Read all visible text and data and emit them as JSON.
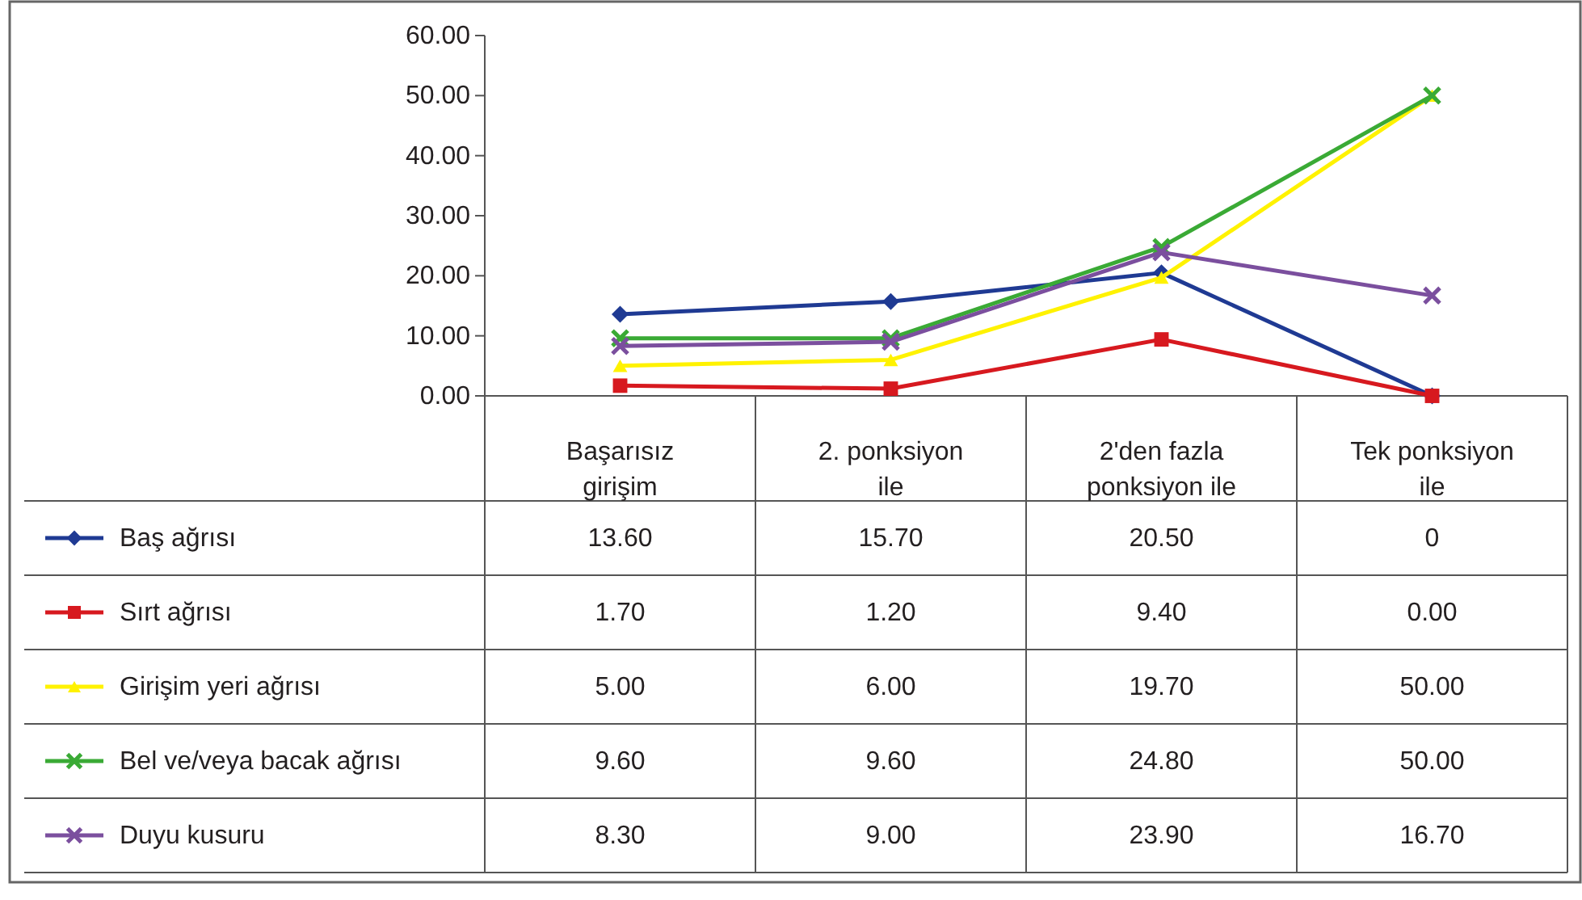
{
  "chart_data": {
    "type": "line",
    "categories": [
      "Başarısız girişim",
      "2. ponksiyon ile",
      "2'den fazla ponksiyon ile",
      "Tek ponksiyon ile"
    ],
    "ylim": [
      0,
      60
    ],
    "yticks": [
      {
        "value": 0,
        "label": "0.00"
      },
      {
        "value": 10,
        "label": "10.00"
      },
      {
        "value": 20,
        "label": "20.00"
      },
      {
        "value": 30,
        "label": "30.00"
      },
      {
        "value": 40,
        "label": "40.00"
      },
      {
        "value": 50,
        "label": "50.00"
      },
      {
        "value": 60,
        "label": "60.00"
      }
    ],
    "grid": false,
    "legend": "bottom left",
    "line_style": "solid",
    "series": [
      {
        "name": "Baş ağrısı",
        "color": "#1f3a93",
        "marker": "diamond",
        "values": [
          13.6,
          15.7,
          20.5,
          0
        ],
        "value_labels": [
          "13.60",
          "15.70",
          "20.50",
          "0"
        ]
      },
      {
        "name": "Sırt ağrısı",
        "color": "#d7191f",
        "marker": "square",
        "values": [
          1.7,
          1.2,
          9.4,
          0.0
        ],
        "value_labels": [
          "1.70",
          "1.20",
          "9.40",
          "0.00"
        ]
      },
      {
        "name": "Girişim yeri ağrısı",
        "color": "#fff200",
        "marker": "triangle",
        "values": [
          5.0,
          6.0,
          19.7,
          50.0
        ],
        "value_labels": [
          "5.00",
          "6.00",
          "19.70",
          "50.00"
        ]
      },
      {
        "name": "Bel ve/veya bacak ağrısı",
        "color": "#3aaa35",
        "marker": "cross",
        "values": [
          9.6,
          9.6,
          24.8,
          50.0
        ],
        "value_labels": [
          "9.60",
          "9.60",
          "24.80",
          "50.00"
        ]
      },
      {
        "name": "Duyu kusuru",
        "color": "#7b4f9e",
        "marker": "cross",
        "values": [
          8.3,
          9.0,
          23.9,
          16.7
        ],
        "value_labels": [
          "8.30",
          "9.00",
          "23.90",
          "16.70"
        ]
      }
    ]
  }
}
